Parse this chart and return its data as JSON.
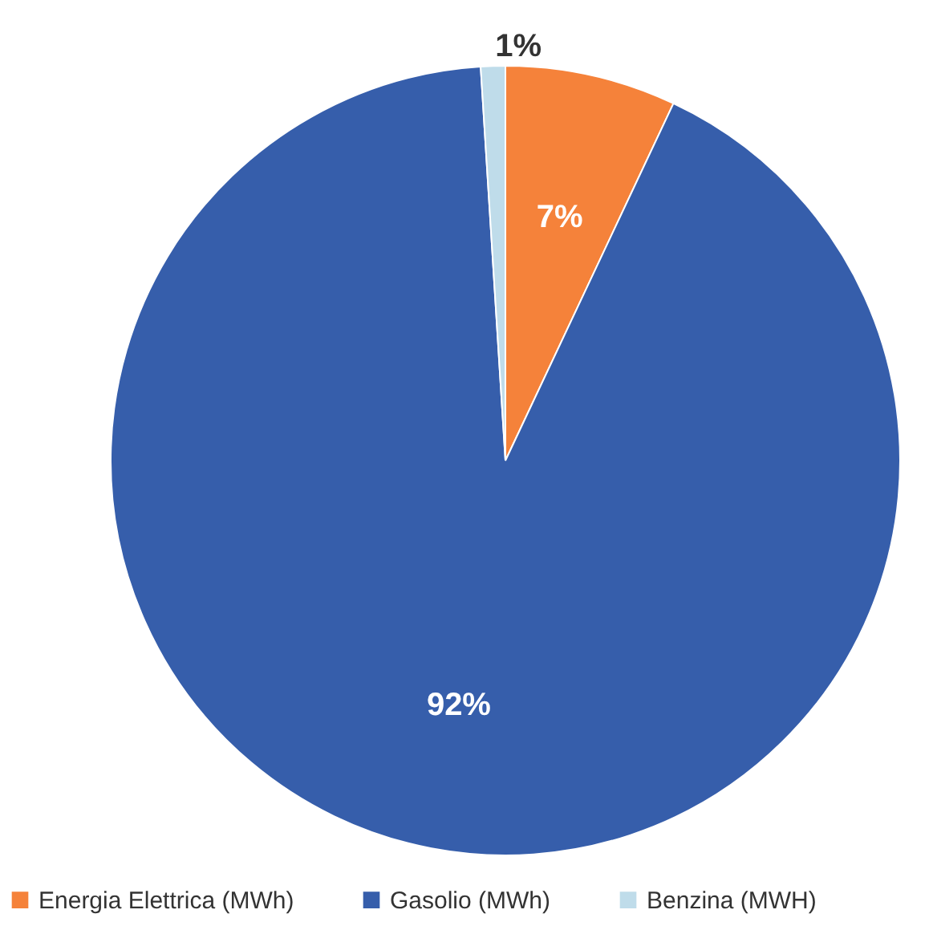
{
  "chart_data": {
    "type": "pie",
    "categories": [
      "Energia Elettrica (MWh)",
      "Gasolio (MWh)",
      "Benzina (MWH)"
    ],
    "values": [
      7,
      92,
      1
    ],
    "colors": [
      "#f5823a",
      "#365eab",
      "#bfdcea"
    ],
    "value_labels": [
      "7%",
      "92%",
      "1%"
    ],
    "legend": "bottom"
  }
}
